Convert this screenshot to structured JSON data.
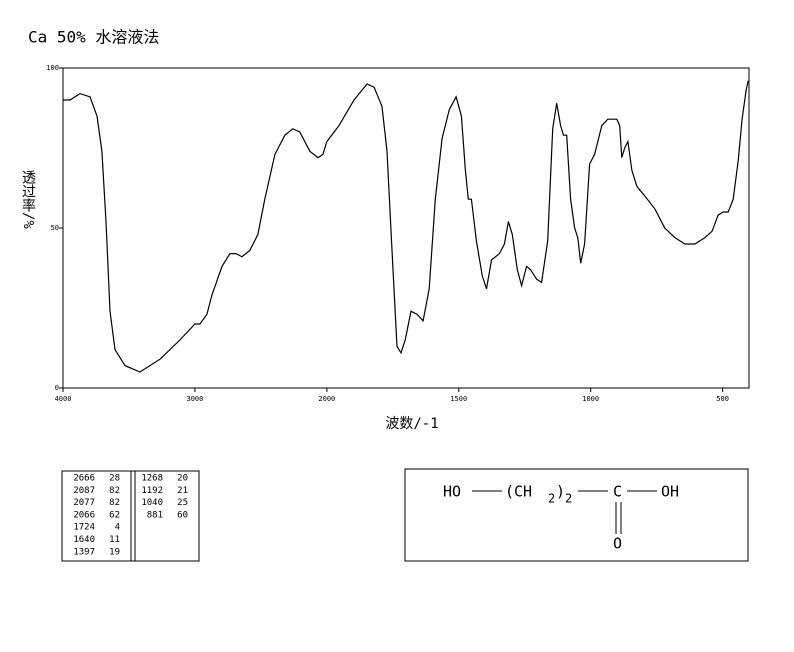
{
  "chart_data": {
    "type": "line",
    "title": "Ca 50% 水溶液法",
    "x_label": "波数/-1",
    "y_label": "透过率/%",
    "color": "#000000",
    "x": [
      4000,
      3947,
      3871,
      3795,
      3742,
      3705,
      3674,
      3644,
      3606,
      3530,
      3417,
      3265,
      3114,
      3000,
      2962,
      2909,
      2871,
      2795,
      2735,
      2689,
      2644,
      2583,
      2523,
      2470,
      2394,
      2318,
      2258,
      2205,
      2129,
      2068,
      2030,
      2000,
      1954,
      1897,
      1848,
      1821,
      1791,
      1772,
      1753,
      1734,
      1719,
      1703,
      1681,
      1658,
      1635,
      1612,
      1589,
      1563,
      1536,
      1510,
      1490,
      1475,
      1464,
      1452,
      1433,
      1411,
      1395,
      1376,
      1346,
      1327,
      1312,
      1297,
      1278,
      1262,
      1243,
      1228,
      1205,
      1186,
      1163,
      1144,
      1129,
      1114,
      1103,
      1091,
      1076,
      1061,
      1049,
      1038,
      1023,
      1004,
      985,
      958,
      935,
      901,
      890,
      882,
      871,
      859,
      844,
      825,
      795,
      757,
      719,
      681,
      643,
      605,
      567,
      540,
      517,
      498,
      479,
      460,
      441,
      426,
      411,
      403
    ],
    "values": [
      90,
      90,
      92,
      91,
      85,
      74,
      52,
      24,
      12,
      7,
      5,
      9,
      15,
      20,
      20,
      23,
      29,
      38,
      42,
      42,
      41,
      43,
      48,
      59,
      73,
      79,
      81,
      80,
      74,
      72,
      73,
      77,
      82,
      90,
      95,
      94,
      88,
      74,
      43,
      13,
      11,
      15,
      24,
      23,
      21,
      31,
      59,
      78,
      87,
      91,
      85,
      68,
      59,
      59,
      46,
      35,
      31,
      40,
      42,
      45,
      52,
      48,
      37,
      32,
      38,
      37,
      34,
      33,
      46,
      81,
      89,
      82,
      79,
      79,
      59,
      50,
      47,
      39,
      45,
      70,
      73,
      82,
      84,
      84,
      82,
      72,
      75,
      77,
      68,
      63,
      60,
      56,
      50,
      47,
      45,
      45,
      47,
      49,
      54,
      55,
      55,
      59,
      71,
      84,
      93,
      96
    ],
    "xlim": [
      4000,
      400
    ],
    "ylim": [
      0,
      100
    ],
    "xticks": [
      4000,
      3000,
      2000,
      1500,
      1000,
      500
    ],
    "yticks": [
      0,
      50,
      100
    ]
  },
  "peak_table": {
    "columns": [
      [
        [
          2666,
          28
        ],
        [
          2087,
          82
        ],
        [
          2077,
          82
        ],
        [
          2066,
          62
        ],
        [
          1724,
          4
        ],
        [
          1640,
          11
        ],
        [
          1397,
          19
        ]
      ],
      [
        [
          1268,
          20
        ],
        [
          1192,
          21
        ],
        [
          1040,
          25
        ],
        [
          881,
          60
        ]
      ]
    ]
  },
  "structure": {
    "left_group": "HO",
    "open": "(CH",
    "h_count": "2",
    "close": ")",
    "repeat": "2",
    "carbon": "C",
    "right_group": "OH",
    "oxygen": "O"
  }
}
